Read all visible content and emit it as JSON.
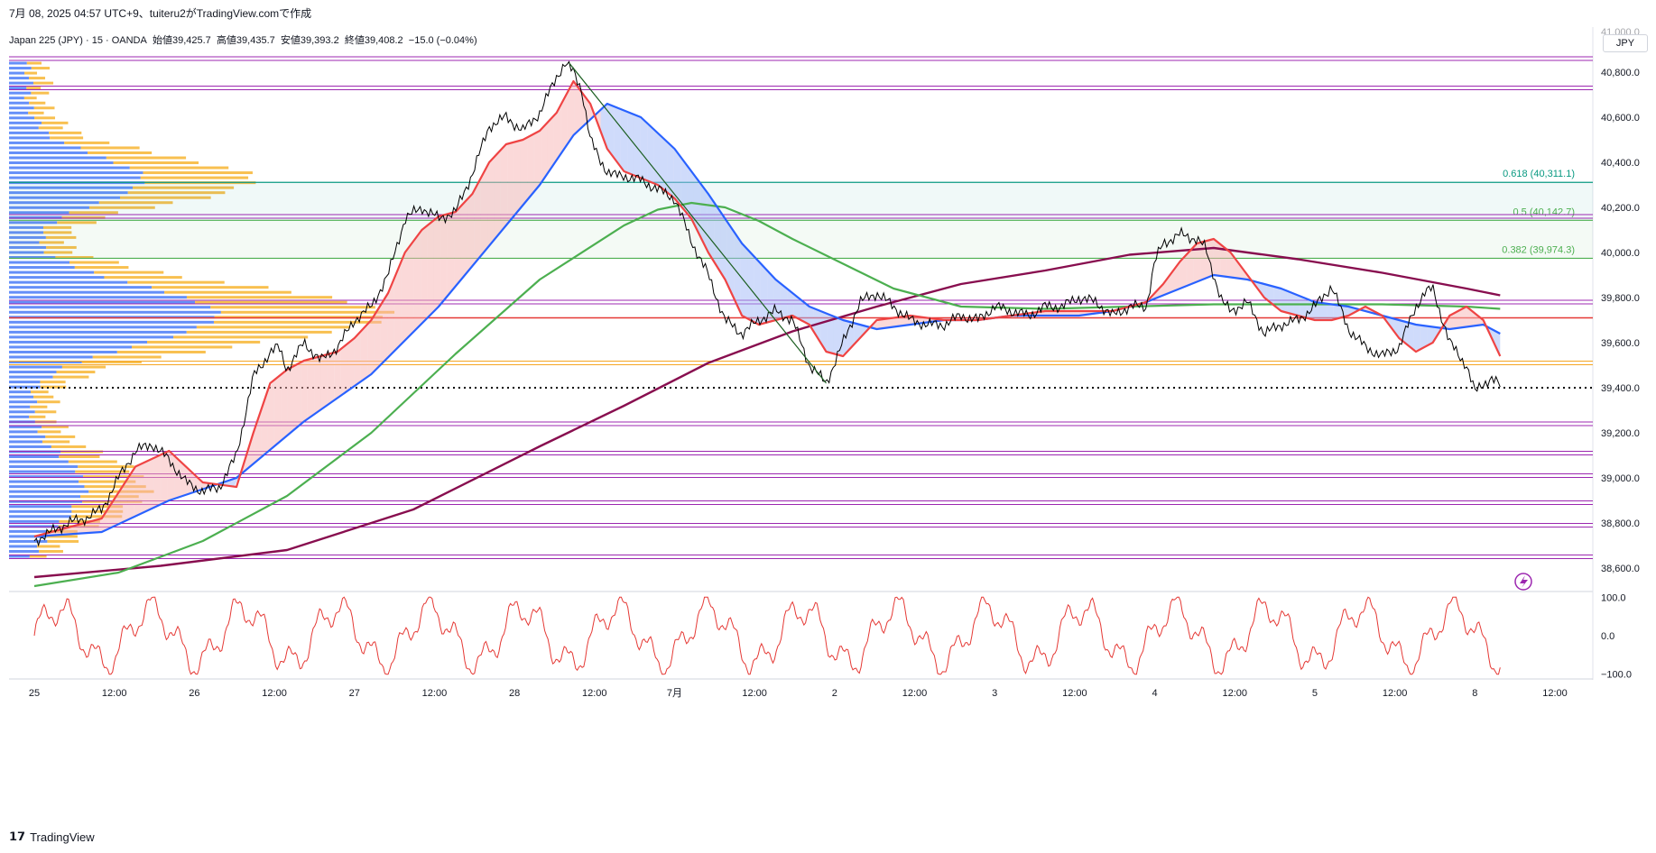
{
  "header": {
    "title": "7月 08, 2025 04:57 UTC+9、tuiteru2がTradingView.comで作成"
  },
  "legend": {
    "symbol": "Japan 225 (JPY) · 15 · OANDA",
    "open_label": "始値",
    "open": "39,425.7",
    "high_label": "高値",
    "high": "39,435.7",
    "low_label": "安値",
    "low": "39,393.2",
    "close_label": "終値",
    "close": "39,408.2",
    "change": "−15.0 (−0.04%)"
  },
  "currency_label": "JPY",
  "brand": {
    "logo_text": "TradingView"
  },
  "colors": {
    "price_line": "#000000",
    "ema_fast": "#ef4444",
    "ema_slow": "#2962ff",
    "ma_green": "#4caf50",
    "ma_long": "#880e4f",
    "fib_line": "#089981",
    "horizontal_level": "#9c27b0",
    "red_level": "#e53935",
    "orange_level": "#f5a623",
    "oscillator": "#e53935"
  },
  "chart_data": {
    "type": "line",
    "title": "",
    "ylim": [
      38500,
      41000
    ],
    "y_ticks": [
      "40,800.0",
      "40,600.0",
      "40,400.0",
      "40,200.0",
      "40,000.0",
      "39,800.0",
      "39,600.0",
      "39,400.0",
      "39,200.0",
      "39,000.0",
      "38,800.0",
      "38,600.0"
    ],
    "y_tick_values": [
      40800,
      40600,
      40400,
      40200,
      40000,
      39800,
      39600,
      39400,
      39200,
      39000,
      38800,
      38600
    ],
    "x_ticks": [
      "25",
      "12:00",
      "26",
      "12:00",
      "27",
      "12:00",
      "28",
      "12:00",
      "7月",
      "12:00",
      "2",
      "12:00",
      "3",
      "12:00",
      "4",
      "12:00",
      "5",
      "12:00",
      "8",
      "12:00"
    ],
    "x_tick_positions": [
      0,
      9.5,
      19,
      28.5,
      38,
      47.5,
      57,
      66.5,
      76,
      85.5,
      95,
      104.5,
      114,
      123.5,
      133,
      142.5,
      152,
      161.5,
      171,
      180.5
    ],
    "x_range": [
      -3,
      185
    ],
    "series": [
      {
        "x": [
          0,
          2,
          4,
          6,
          8,
          10,
          12,
          14,
          16,
          18,
          20,
          22,
          24,
          26,
          27,
          28,
          29,
          30,
          32,
          34,
          36,
          38,
          40,
          42,
          44,
          46,
          48,
          50,
          52,
          54,
          56,
          58,
          60,
          62,
          63,
          64,
          65,
          66,
          67,
          68,
          69,
          70,
          72,
          74,
          76,
          78,
          80,
          82,
          84,
          86,
          88,
          90,
          92,
          94,
          96,
          98,
          100,
          102,
          104,
          106,
          108,
          110,
          112,
          114,
          116,
          118,
          120,
          122,
          124,
          126,
          128,
          130,
          132,
          133,
          134,
          136,
          138,
          139,
          140,
          141,
          142,
          144,
          146,
          148,
          150,
          152,
          154,
          156,
          158,
          160,
          162,
          164,
          165,
          166,
          168,
          170,
          170.5,
          171,
          172,
          173,
          174
        ],
        "values": [
          38720,
          38760,
          38800,
          38820,
          38860,
          39000,
          39120,
          39150,
          39080,
          38980,
          38940,
          38960,
          39100,
          39450,
          39500,
          39560,
          39580,
          39480,
          39600,
          39520,
          39580,
          39700,
          39760,
          39900,
          40150,
          40200,
          40150,
          40180,
          40350,
          40560,
          40600,
          40540,
          40620,
          40780,
          40840,
          40800,
          40720,
          40500,
          40420,
          40360,
          40340,
          40340,
          40320,
          40280,
          40240,
          40050,
          39900,
          39700,
          39640,
          39700,
          39740,
          39700,
          39500,
          39420,
          39600,
          39780,
          39820,
          39760,
          39700,
          39680,
          39680,
          39720,
          39700,
          39760,
          39740,
          39720,
          39760,
          39760,
          39800,
          39780,
          39720,
          39760,
          39760,
          39960,
          40040,
          40080,
          40060,
          40020,
          39900,
          39780,
          39740,
          39780,
          39640,
          39680,
          39700,
          39760,
          39850,
          39660,
          39580,
          39540,
          39580,
          39760,
          39820,
          39840,
          39600,
          39500,
          39440,
          39380,
          39420,
          39440,
          39408
        ]
      },
      {
        "x": [
          0,
          4,
          8,
          12,
          16,
          20,
          24,
          26,
          28,
          30,
          32,
          34,
          36,
          38,
          40,
          42,
          44,
          46,
          48,
          50,
          52,
          54,
          56,
          58,
          60,
          62,
          64,
          66,
          68,
          70,
          72,
          74,
          76,
          78,
          80,
          82,
          84,
          86,
          88,
          90,
          92,
          94,
          96,
          98,
          100,
          104,
          108,
          112,
          116,
          120,
          124,
          128,
          130,
          132,
          134,
          136,
          138,
          140,
          142,
          144,
          146,
          148,
          150,
          152,
          154,
          156,
          158,
          160,
          162,
          164,
          166,
          168,
          170,
          172,
          174
        ],
        "values": [
          38740,
          38780,
          38820,
          39050,
          39120,
          38980,
          38960,
          39200,
          39420,
          39480,
          39520,
          39540,
          39560,
          39620,
          39700,
          39820,
          40000,
          40100,
          40160,
          40180,
          40260,
          40400,
          40480,
          40500,
          40540,
          40620,
          40760,
          40660,
          40460,
          40360,
          40330,
          40300,
          40240,
          40150,
          40000,
          39880,
          39720,
          39680,
          39700,
          39720,
          39680,
          39560,
          39540,
          39620,
          39700,
          39720,
          39700,
          39700,
          39720,
          39740,
          39740,
          39740,
          39760,
          39780,
          39860,
          39960,
          40040,
          40060,
          40000,
          39900,
          39800,
          39740,
          39720,
          39700,
          39700,
          39720,
          39760,
          39720,
          39620,
          39560,
          39600,
          39720,
          39760,
          39700,
          39540
        ]
      },
      {
        "x": [
          0,
          8,
          16,
          24,
          32,
          40,
          48,
          56,
          60,
          64,
          68,
          72,
          76,
          80,
          84,
          88,
          92,
          96,
          100,
          104,
          108,
          112,
          116,
          120,
          124,
          128,
          132,
          136,
          140,
          144,
          148,
          152,
          156,
          160,
          164,
          168,
          172,
          174
        ],
        "values": [
          38740,
          38760,
          38900,
          39000,
          39250,
          39460,
          39760,
          40120,
          40300,
          40520,
          40660,
          40600,
          40460,
          40260,
          40040,
          39880,
          39760,
          39700,
          39660,
          39680,
          39700,
          39700,
          39720,
          39720,
          39720,
          39740,
          39780,
          39840,
          39900,
          39880,
          39840,
          39780,
          39760,
          39720,
          39680,
          39660,
          39680,
          39640
        ]
      },
      {
        "x": [
          0,
          10,
          20,
          30,
          40,
          50,
          60,
          70,
          74,
          78,
          82,
          86,
          90,
          96,
          102,
          110,
          120,
          130,
          140,
          150,
          160,
          170,
          174
        ],
        "values": [
          38520,
          38580,
          38720,
          38920,
          39200,
          39550,
          39880,
          40120,
          40190,
          40220,
          40200,
          40140,
          40060,
          39950,
          39840,
          39760,
          39750,
          39760,
          39770,
          39770,
          39770,
          39760,
          39750
        ]
      },
      {
        "x": [
          0,
          15,
          30,
          45,
          60,
          70,
          80,
          90,
          100,
          110,
          120,
          130,
          140,
          150,
          160,
          170,
          174
        ],
        "values": [
          38560,
          38610,
          38680,
          38860,
          39140,
          39320,
          39510,
          39650,
          39760,
          39860,
          39920,
          39990,
          40020,
          39970,
          39910,
          39840,
          39810
        ]
      }
    ],
    "series_styles": [
      "price",
      "ema_fast",
      "ema_slow",
      "ma_green",
      "ma_long"
    ],
    "horizontal_levels": [
      40860,
      40730,
      40160,
      39780,
      39240,
      39110,
      39010,
      38890,
      38790,
      38650
    ],
    "red_level": 39710,
    "orange_level": 39510,
    "dotted_level": 39400,
    "fib_levels": [
      {
        "label": "0.618 (40,311.1)",
        "value": 40311.1
      },
      {
        "label": "0.5 (40,142.7)",
        "value": 40142.7
      },
      {
        "label": "0.382 (39,974.3)",
        "value": 39974.3
      }
    ],
    "oscillator": {
      "ylim": [
        -110,
        110
      ],
      "ticks": [
        "100.0",
        "0.0",
        "−100.0"
      ],
      "tick_values": [
        100,
        0,
        -100
      ]
    },
    "volume_profile": {
      "rows": 100
    },
    "grid": false
  }
}
